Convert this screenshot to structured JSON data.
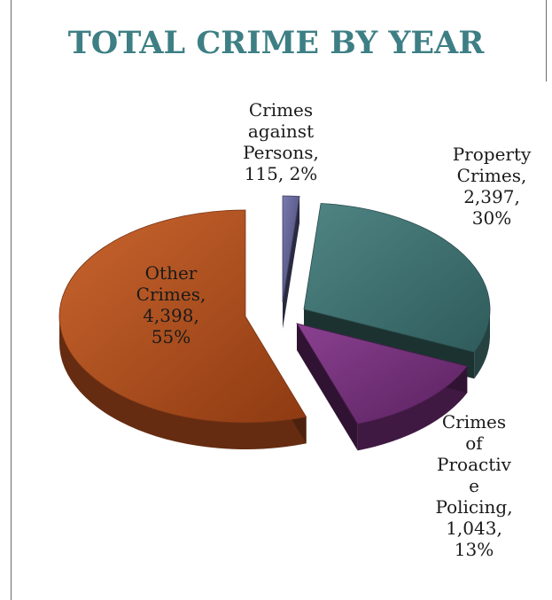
{
  "chart_data": {
    "type": "pie",
    "title": "TOTAL CRIME BY YEAR",
    "slices": [
      {
        "name": "Crimes against Persons",
        "value": 115,
        "percent": "2%",
        "color": "#5b5b8f",
        "label_lines": [
          "Crimes",
          "against",
          "Persons,",
          "115, 2%"
        ]
      },
      {
        "name": "Property Crimes",
        "value": 2397,
        "percent": "30%",
        "color": "#3e6e6d",
        "label_lines": [
          "Property",
          "Crimes,",
          "2,397,",
          "30%"
        ]
      },
      {
        "name": "Crimes of Proactive Policing",
        "value": 1043,
        "percent": "13%",
        "color": "#6a2a70",
        "label_lines": [
          "Crimes",
          "of",
          "Proactiv",
          "e",
          "Policing,",
          "1,043,",
          "13%"
        ]
      },
      {
        "name": "Other Crimes",
        "value": 4398,
        "percent": "55%",
        "color": "#a84a1c",
        "label_lines": [
          "Other",
          "Crimes,",
          "4,398,",
          "55%"
        ]
      }
    ]
  }
}
